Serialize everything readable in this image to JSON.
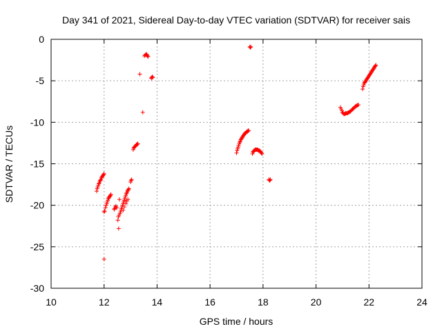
{
  "chart_data": {
    "type": "scatter",
    "title": "Day 341 of 2021, Sidereal Day-to-day VTEC variation (SDTVAR) for receiver sais",
    "xlabel": "GPS time / hours",
    "ylabel": "SDTVAR / TECUs",
    "xlim": [
      10,
      24
    ],
    "ylim": [
      -30,
      0
    ],
    "xticks": [
      10,
      12,
      14,
      16,
      18,
      20,
      22,
      24
    ],
    "yticks": [
      0,
      -5,
      -10,
      -15,
      -20,
      -25,
      -30
    ],
    "xtick_labels": [
      "10",
      "12",
      "14",
      "16",
      "18",
      "20",
      "22",
      "24"
    ],
    "ytick_labels": [
      "0",
      "-5",
      "-10",
      "-15",
      "-20",
      "-25",
      "-30"
    ],
    "grid": true,
    "marker": "+",
    "color": "#ff0000",
    "series": [
      {
        "name": "SDTVAR",
        "x": [
          11.72,
          11.74,
          11.76,
          11.78,
          11.8,
          11.82,
          11.84,
          11.86,
          11.88,
          11.9,
          11.92,
          11.94,
          11.96,
          11.98,
          12.0,
          12.0,
          12.02,
          12.05,
          12.08,
          12.1,
          12.12,
          12.14,
          12.16,
          12.18,
          12.2,
          12.22,
          12.24,
          12.26,
          12.38,
          12.4,
          12.42,
          12.45,
          12.48,
          12.52,
          12.54,
          12.56,
          12.6,
          12.62,
          12.64,
          12.66,
          12.68,
          12.7,
          12.72,
          12.74,
          12.76,
          12.78,
          12.8,
          12.82,
          12.84,
          12.86,
          12.88,
          12.9,
          12.92,
          12.94,
          12.72,
          12.76,
          12.82,
          12.86,
          12.9,
          13.0,
          13.02,
          13.04,
          13.1,
          13.12,
          13.14,
          13.16,
          13.18,
          13.2,
          13.22,
          13.24,
          13.26,
          13.28,
          13.35,
          13.46,
          13.52,
          13.55,
          13.58,
          13.6,
          13.62,
          13.64,
          13.66,
          13.78,
          13.8,
          13.82,
          13.84,
          17.0,
          17.02,
          17.04,
          17.06,
          17.08,
          17.1,
          17.12,
          17.14,
          17.16,
          17.18,
          17.2,
          17.22,
          17.24,
          17.26,
          17.28,
          17.3,
          17.32,
          17.34,
          17.36,
          17.38,
          17.4,
          17.42,
          17.44,
          17.46,
          17.5,
          17.52,
          17.54,
          17.6,
          17.62,
          17.64,
          17.66,
          17.68,
          17.7,
          17.72,
          17.74,
          17.76,
          17.78,
          17.8,
          17.82,
          17.84,
          17.86,
          17.88,
          17.9,
          17.92,
          17.94,
          17.96,
          18.22,
          18.24,
          18.26,
          18.28,
          20.92,
          20.95,
          20.98,
          21.0,
          21.02,
          21.05,
          21.08,
          21.1,
          21.12,
          21.15,
          21.18,
          21.2,
          21.22,
          21.25,
          21.28,
          21.3,
          21.32,
          21.35,
          21.38,
          21.4,
          21.42,
          21.45,
          21.48,
          21.5,
          21.52,
          21.55,
          21.58,
          21.6,
          21.76,
          21.78,
          21.8,
          21.82,
          21.84,
          21.86,
          21.88,
          21.9,
          21.92,
          21.94,
          21.96,
          21.98,
          22.0,
          22.02,
          22.04,
          22.06,
          22.08,
          22.1,
          22.12,
          22.14,
          22.16,
          22.18,
          22.2,
          22.22,
          22.24,
          22.26,
          12.0,
          12.55,
          12.58
        ],
        "y": [
          -18.3,
          -18.0,
          -17.8,
          -17.6,
          -17.4,
          -17.3,
          -17.1,
          -17.0,
          -16.9,
          -16.7,
          -16.6,
          -16.5,
          -16.4,
          -16.3,
          -16.2,
          -20.8,
          -20.7,
          -20.3,
          -20.0,
          -19.8,
          -19.6,
          -19.4,
          -19.2,
          -19.1,
          -19.0,
          -18.9,
          -18.8,
          -18.7,
          -20.5,
          -20.4,
          -20.2,
          -20.1,
          -20.3,
          -21.8,
          -21.4,
          -21.2,
          -21.0,
          -20.8,
          -20.6,
          -20.4,
          -20.2,
          -20.0,
          -19.8,
          -19.6,
          -19.4,
          -19.2,
          -19.0,
          -18.8,
          -18.6,
          -18.5,
          -18.3,
          -18.2,
          -18.1,
          -18.0,
          -20.6,
          -20.2,
          -19.8,
          -19.5,
          -19.3,
          -17.2,
          -17.0,
          -16.9,
          -13.3,
          -13.1,
          -13.0,
          -12.9,
          -12.9,
          -12.8,
          -12.7,
          -12.7,
          -12.6,
          -12.6,
          -4.2,
          -8.8,
          -2.0,
          -1.9,
          -1.8,
          -1.8,
          -1.9,
          -2.0,
          -2.1,
          -4.7,
          -4.6,
          -4.5,
          -4.6,
          -13.7,
          -13.4,
          -13.2,
          -13.0,
          -12.8,
          -12.6,
          -12.4,
          -12.3,
          -12.1,
          -12.0,
          -11.9,
          -11.8,
          -11.7,
          -11.6,
          -11.5,
          -11.4,
          -11.3,
          -11.3,
          -11.2,
          -11.2,
          -11.1,
          -11.1,
          -11.0,
          -11.0,
          -0.9,
          -1.0,
          -0.9,
          -13.8,
          -13.6,
          -13.5,
          -13.4,
          -13.4,
          -13.3,
          -13.3,
          -13.3,
          -13.3,
          -13.3,
          -13.3,
          -13.4,
          -13.4,
          -13.4,
          -13.5,
          -13.5,
          -13.6,
          -13.7,
          -13.8,
          -16.9,
          -17.0,
          -17.0,
          -16.9,
          -8.2,
          -8.4,
          -8.6,
          -8.8,
          -8.9,
          -9.0,
          -9.0,
          -9.0,
          -8.9,
          -8.9,
          -8.9,
          -8.9,
          -8.8,
          -8.8,
          -8.7,
          -8.7,
          -8.6,
          -8.5,
          -8.4,
          -8.4,
          -8.3,
          -8.2,
          -8.1,
          -8.1,
          -8.0,
          -8.0,
          -7.9,
          -7.9,
          -6.0,
          -5.7,
          -5.5,
          -5.3,
          -5.2,
          -5.1,
          -5.0,
          -4.9,
          -4.8,
          -4.7,
          -4.6,
          -4.5,
          -4.4,
          -4.3,
          -4.2,
          -4.1,
          -4.0,
          -3.9,
          -3.8,
          -3.7,
          -3.6,
          -3.5,
          -3.4,
          -3.3,
          -3.2,
          -3.1,
          -26.5,
          -22.8,
          -19.3
        ]
      }
    ]
  }
}
